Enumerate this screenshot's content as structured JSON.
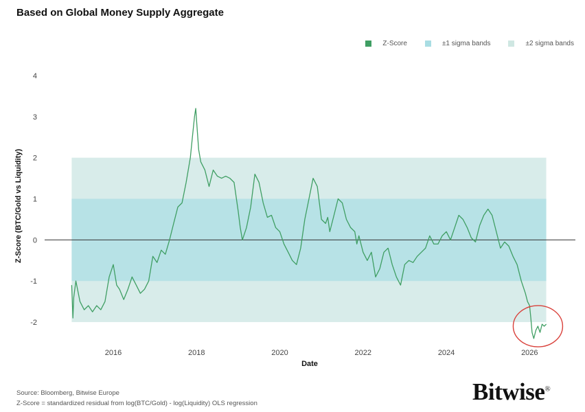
{
  "header": {
    "title": "Based on Global Money Supply Aggregate"
  },
  "legend": {
    "items": [
      {
        "label": "Z-Score",
        "color": "#3f9e63"
      },
      {
        "label": "±1 sigma bands",
        "color": "#a9dde3"
      },
      {
        "label": "±2 sigma bands",
        "color": "#cfe7e2"
      }
    ]
  },
  "footer": {
    "source": "Source: Bloomberg, Bitwise Europe",
    "method": "Z-Score = standardized residual from log(BTC/Gold) - log(Liquidity) OLS regression",
    "logo_text": "Bitwise",
    "logo_mark": "®"
  },
  "colors": {
    "line": "#3f9e63",
    "band1": "#b7e2e6",
    "band2": "#d8ecea",
    "zero_line": "#333333",
    "circle": "#d9403a"
  },
  "chart_data": {
    "type": "line",
    "title": "Based on Global Money Supply Aggregate",
    "xlabel": "Date",
    "ylabel": "Z-Score (BTC/Gold vs Liquidity)",
    "xlim": [
      2014.35,
      2027.1
    ],
    "ylim": [
      -2.6,
      4.2
    ],
    "xticks": [
      2016,
      2018,
      2020,
      2022,
      2024,
      2026
    ],
    "yticks": [
      -2,
      -1,
      0,
      1,
      2,
      3,
      4
    ],
    "grid": false,
    "legend_position": "top-right",
    "bands": [
      {
        "name": "±2 sigma bands",
        "lower": -2,
        "upper": 2,
        "x_start": 2015.0,
        "x_end": 2026.4
      },
      {
        "name": "±1 sigma bands",
        "lower": -1,
        "upper": 1,
        "x_start": 2015.0,
        "x_end": 2026.4
      }
    ],
    "reference_line": {
      "y": 0
    },
    "annotation": {
      "type": "circle",
      "x": 2026.2,
      "y": -2.1
    },
    "series": [
      {
        "name": "Z-Score",
        "x": [
          2015.0,
          2015.03,
          2015.05,
          2015.1,
          2015.2,
          2015.3,
          2015.4,
          2015.5,
          2015.6,
          2015.7,
          2015.8,
          2015.9,
          2016.0,
          2016.08,
          2016.15,
          2016.25,
          2016.35,
          2016.45,
          2016.55,
          2016.65,
          2016.75,
          2016.85,
          2016.95,
          2017.05,
          2017.15,
          2017.25,
          2017.35,
          2017.45,
          2017.55,
          2017.65,
          2017.75,
          2017.85,
          2017.9,
          2017.95,
          2017.98,
          2018.0,
          2018.05,
          2018.1,
          2018.2,
          2018.3,
          2018.4,
          2018.5,
          2018.6,
          2018.7,
          2018.8,
          2018.9,
          2019.0,
          2019.05,
          2019.1,
          2019.2,
          2019.3,
          2019.4,
          2019.5,
          2019.6,
          2019.7,
          2019.8,
          2019.9,
          2020.0,
          2020.1,
          2020.2,
          2020.3,
          2020.4,
          2020.5,
          2020.6,
          2020.7,
          2020.8,
          2020.9,
          2021.0,
          2021.1,
          2021.15,
          2021.2,
          2021.3,
          2021.4,
          2021.5,
          2021.6,
          2021.7,
          2021.8,
          2021.85,
          2021.9,
          2022.0,
          2022.1,
          2022.2,
          2022.3,
          2022.4,
          2022.5,
          2022.6,
          2022.7,
          2022.8,
          2022.9,
          2023.0,
          2023.1,
          2023.2,
          2023.3,
          2023.4,
          2023.5,
          2023.6,
          2023.7,
          2023.8,
          2023.9,
          2024.0,
          2024.1,
          2024.2,
          2024.3,
          2024.4,
          2024.5,
          2024.6,
          2024.7,
          2024.8,
          2024.9,
          2025.0,
          2025.1,
          2025.2,
          2025.3,
          2025.4,
          2025.5,
          2025.6,
          2025.7,
          2025.8,
          2025.9,
          2025.95,
          2026.0,
          2026.03,
          2026.06,
          2026.1,
          2026.15,
          2026.2,
          2026.25,
          2026.3,
          2026.35,
          2026.4
        ],
        "values": [
          -1.1,
          -1.9,
          -1.4,
          -1.0,
          -1.5,
          -1.7,
          -1.6,
          -1.75,
          -1.6,
          -1.7,
          -1.5,
          -0.9,
          -0.6,
          -1.1,
          -1.2,
          -1.45,
          -1.2,
          -0.9,
          -1.1,
          -1.3,
          -1.2,
          -1.0,
          -0.4,
          -0.55,
          -0.25,
          -0.35,
          0.0,
          0.4,
          0.8,
          0.9,
          1.4,
          2.0,
          2.5,
          3.0,
          3.2,
          2.9,
          2.2,
          1.9,
          1.7,
          1.3,
          1.7,
          1.55,
          1.5,
          1.55,
          1.5,
          1.4,
          0.7,
          0.3,
          0.0,
          0.3,
          0.8,
          1.6,
          1.4,
          0.9,
          0.55,
          0.6,
          0.3,
          0.2,
          -0.1,
          -0.3,
          -0.5,
          -0.6,
          -0.2,
          0.5,
          1.0,
          1.5,
          1.3,
          0.5,
          0.4,
          0.55,
          0.2,
          0.6,
          1.0,
          0.9,
          0.5,
          0.3,
          0.2,
          -0.1,
          0.1,
          -0.3,
          -0.5,
          -0.3,
          -0.9,
          -0.7,
          -0.3,
          -0.2,
          -0.6,
          -0.9,
          -1.1,
          -0.6,
          -0.5,
          -0.55,
          -0.4,
          -0.3,
          -0.2,
          0.1,
          -0.1,
          -0.1,
          0.1,
          0.2,
          0.0,
          0.3,
          0.6,
          0.5,
          0.3,
          0.05,
          -0.05,
          0.35,
          0.6,
          0.75,
          0.6,
          0.2,
          -0.2,
          -0.05,
          -0.15,
          -0.4,
          -0.6,
          -1.0,
          -1.3,
          -1.5,
          -1.6,
          -1.9,
          -2.25,
          -2.4,
          -2.2,
          -2.1,
          -2.25,
          -2.05,
          -2.1,
          -2.05
        ]
      }
    ]
  }
}
